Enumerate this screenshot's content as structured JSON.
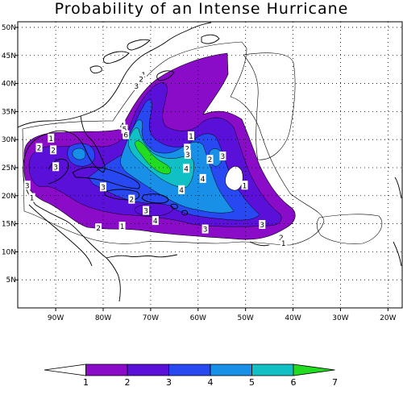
{
  "title": "Probability of an Intense Hurricane",
  "map": {
    "lon_range": [
      -98,
      -17
    ],
    "lat_range": [
      0,
      51
    ],
    "lon_ticks": [
      {
        "value": -90,
        "label": "90W"
      },
      {
        "value": -80,
        "label": "80W"
      },
      {
        "value": -70,
        "label": "70W"
      },
      {
        "value": -60,
        "label": "60W"
      },
      {
        "value": -50,
        "label": "50W"
      },
      {
        "value": -40,
        "label": "40W"
      },
      {
        "value": -30,
        "label": "30W"
      },
      {
        "value": -20,
        "label": "20W"
      }
    ],
    "lat_ticks": [
      {
        "value": 5,
        "label": "5N"
      },
      {
        "value": 10,
        "label": "10N"
      },
      {
        "value": 15,
        "label": "15N"
      },
      {
        "value": 20,
        "label": "20N"
      },
      {
        "value": 25,
        "label": "25N"
      },
      {
        "value": 30,
        "label": "30N"
      },
      {
        "value": 35,
        "label": "35N"
      },
      {
        "value": 40,
        "label": "40N"
      },
      {
        "value": 45,
        "label": "45N"
      },
      {
        "value": 50,
        "label": "50N"
      }
    ],
    "grid": true
  },
  "contour_labels": [
    {
      "lon": -71.5,
      "lat": 41.5,
      "text": "1"
    },
    {
      "lon": -72,
      "lat": 40.7,
      "text": "2"
    },
    {
      "lon": -73,
      "lat": 39.5,
      "text": "3"
    },
    {
      "lon": -76,
      "lat": 32.5,
      "text": "4"
    },
    {
      "lon": -75.5,
      "lat": 31.8,
      "text": "5"
    },
    {
      "lon": -75.2,
      "lat": 30.8,
      "text": "6"
    },
    {
      "lon": -91,
      "lat": 30.2,
      "text": "1"
    },
    {
      "lon": -93.5,
      "lat": 28.5,
      "text": "2"
    },
    {
      "lon": -90.5,
      "lat": 28.1,
      "text": "2"
    },
    {
      "lon": -90,
      "lat": 25.1,
      "text": "3"
    },
    {
      "lon": -96,
      "lat": 21.8,
      "text": "3"
    },
    {
      "lon": -95,
      "lat": 19.6,
      "text": "1"
    },
    {
      "lon": -80,
      "lat": 21.5,
      "text": "3"
    },
    {
      "lon": -74,
      "lat": 19.3,
      "text": "2"
    },
    {
      "lon": -71,
      "lat": 17.3,
      "text": "3"
    },
    {
      "lon": -69,
      "lat": 15.5,
      "text": "4"
    },
    {
      "lon": -81,
      "lat": 14.2,
      "text": "2"
    },
    {
      "lon": -76,
      "lat": 14.5,
      "text": "1"
    },
    {
      "lon": -63.5,
      "lat": 21.0,
      "text": "4"
    },
    {
      "lon": -62.5,
      "lat": 24.8,
      "text": "4"
    },
    {
      "lon": -59,
      "lat": 23.0,
      "text": "4"
    },
    {
      "lon": -61.5,
      "lat": 30.6,
      "text": "1"
    },
    {
      "lon": -62.3,
      "lat": 28.4,
      "text": "2"
    },
    {
      "lon": -62.2,
      "lat": 27.3,
      "text": "3"
    },
    {
      "lon": -57.5,
      "lat": 26.4,
      "text": "2"
    },
    {
      "lon": -54.8,
      "lat": 27.0,
      "text": "3"
    },
    {
      "lon": -50.2,
      "lat": 21.8,
      "text": "1"
    },
    {
      "lon": -58.5,
      "lat": 14.0,
      "text": "3"
    },
    {
      "lon": -46.5,
      "lat": 14.8,
      "text": "3"
    },
    {
      "lon": -42.5,
      "lat": 12.5,
      "text": "2"
    },
    {
      "lon": -42.0,
      "lat": 11.5,
      "text": "1"
    }
  ],
  "colorbar": {
    "labels": [
      "1",
      "2",
      "3",
      "4",
      "5",
      "6",
      "7"
    ],
    "colors": [
      "#ffffff",
      "#8a0cc8",
      "#5a10d8",
      "#2848f2",
      "#1890e8",
      "#10c0c4",
      "#22dc22"
    ]
  }
}
